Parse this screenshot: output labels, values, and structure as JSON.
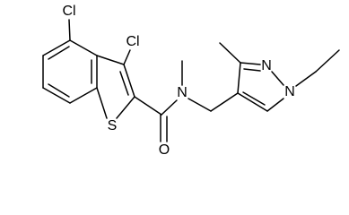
{
  "atoms": [
    {
      "label": "Cl"
    },
    {
      "label": "Cl"
    },
    {
      "label": "S"
    },
    {
      "label": "O"
    },
    {
      "label": "N"
    },
    {
      "label": "N"
    },
    {
      "label": "N"
    }
  ]
}
